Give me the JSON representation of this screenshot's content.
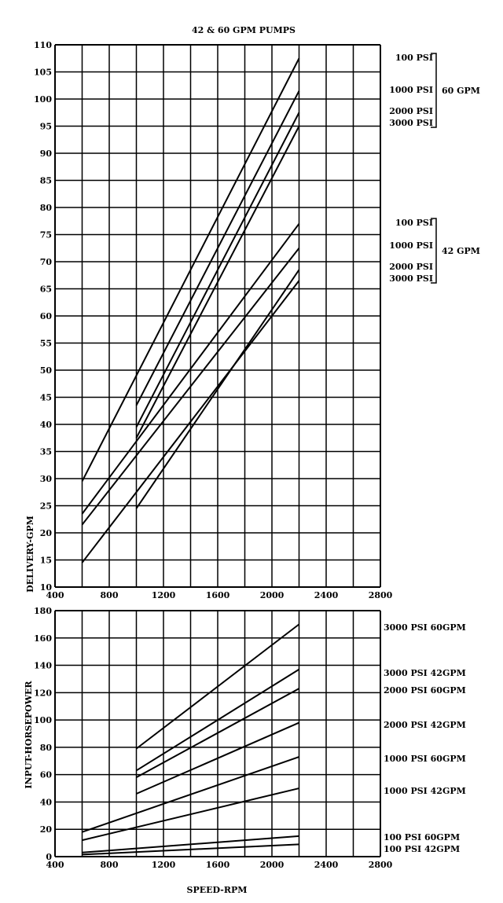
{
  "page_title": "42 & 60 GPM PUMPS",
  "chart_data": [
    {
      "type": "line",
      "title": "42 & 60 GPM PUMPS",
      "xlabel": "",
      "ylabel": "DELIVERY-GPM",
      "xlim": [
        400,
        2800
      ],
      "ylim": [
        10,
        110
      ],
      "x_ticks": [
        400,
        800,
        1200,
        1600,
        2000,
        2400,
        2800
      ],
      "y_ticks": [
        10,
        15,
        20,
        25,
        30,
        35,
        40,
        45,
        50,
        55,
        60,
        65,
        70,
        75,
        80,
        85,
        90,
        95,
        100,
        105,
        110
      ],
      "x_grid_step": 200,
      "y_grid_step": 5,
      "grid": true,
      "series": [
        {
          "name": "100 PSI 60 GPM",
          "x": [
            600,
            2200
          ],
          "y": [
            29.5,
            107.5
          ]
        },
        {
          "name": "1000 PSI 60 GPM",
          "x": [
            1000,
            2200
          ],
          "y": [
            43.5,
            101.5
          ]
        },
        {
          "name": "2000 PSI 60 GPM",
          "x": [
            1000,
            2200
          ],
          "y": [
            39.5,
            97.5
          ]
        },
        {
          "name": "3000 PSI 60 GPM",
          "x": [
            1000,
            2200
          ],
          "y": [
            37.5,
            95
          ]
        },
        {
          "name": "100 PSI 42 GPM",
          "x": [
            600,
            2200
          ],
          "y": [
            23.5,
            77
          ]
        },
        {
          "name": "1000 PSI 42 GPM",
          "x": [
            600,
            2200
          ],
          "y": [
            21.5,
            72.5
          ]
        },
        {
          "name": "2000 PSI 42 GPM",
          "x": [
            1000,
            2200
          ],
          "y": [
            24.5,
            68.5
          ]
        },
        {
          "name": "3000 PSI 42 GPM",
          "x": [
            600,
            2200
          ],
          "y": [
            14.5,
            66.5
          ]
        }
      ],
      "bracket_groups": [
        {
          "label": "60 GPM",
          "entries": [
            "100 PSI",
            "1000 PSI",
            "2000 PSI",
            "3000 PSI"
          ]
        },
        {
          "label": "42 GPM",
          "entries": [
            "100 PSI",
            "1000 PSI",
            "2000 PSI",
            "3000 PSI"
          ]
        }
      ]
    },
    {
      "type": "line",
      "title": "",
      "xlabel": "SPEED-RPM",
      "ylabel": "INPUT-HORSEPOWER",
      "xlim": [
        400,
        2800
      ],
      "ylim": [
        0,
        180
      ],
      "x_ticks": [
        400,
        800,
        1200,
        1600,
        2000,
        2400,
        2800
      ],
      "y_ticks": [
        0,
        20,
        40,
        60,
        80,
        100,
        120,
        140,
        160,
        180
      ],
      "x_grid_step": 200,
      "y_grid_step": 20,
      "grid": true,
      "series": [
        {
          "name": "3000 PSI 60GPM",
          "x": [
            1000,
            2200
          ],
          "y": [
            79,
            170
          ]
        },
        {
          "name": "3000 PSI 42GPM",
          "x": [
            1000,
            2200
          ],
          "y": [
            63,
            137
          ]
        },
        {
          "name": "2000 PSI 60GPM",
          "x": [
            1000,
            2200
          ],
          "y": [
            58,
            123
          ]
        },
        {
          "name": "2000 PSI 42GPM",
          "x": [
            1000,
            2200
          ],
          "y": [
            46,
            98
          ]
        },
        {
          "name": "1000 PSI 60GPM",
          "x": [
            600,
            2200
          ],
          "y": [
            18,
            73
          ]
        },
        {
          "name": "1000 PSI 42GPM",
          "x": [
            600,
            2200
          ],
          "y": [
            12,
            50
          ]
        },
        {
          "name": "100 PSI 60GPM",
          "x": [
            600,
            2200
          ],
          "y": [
            3,
            15
          ]
        },
        {
          "name": "100 PSI 42GPM",
          "x": [
            600,
            2200
          ],
          "y": [
            1.5,
            9
          ]
        }
      ],
      "right_labels": [
        "3000 PSI   60GPM",
        "3000 PSI   42GPM",
        "2000 PSI   60GPM",
        "2000 PSI   42GPM",
        "1000 PSI   60GPM",
        "1000 PSI   42GPM",
        "100 PSI   60GPM",
        "100 PSI   42GPM"
      ]
    }
  ]
}
